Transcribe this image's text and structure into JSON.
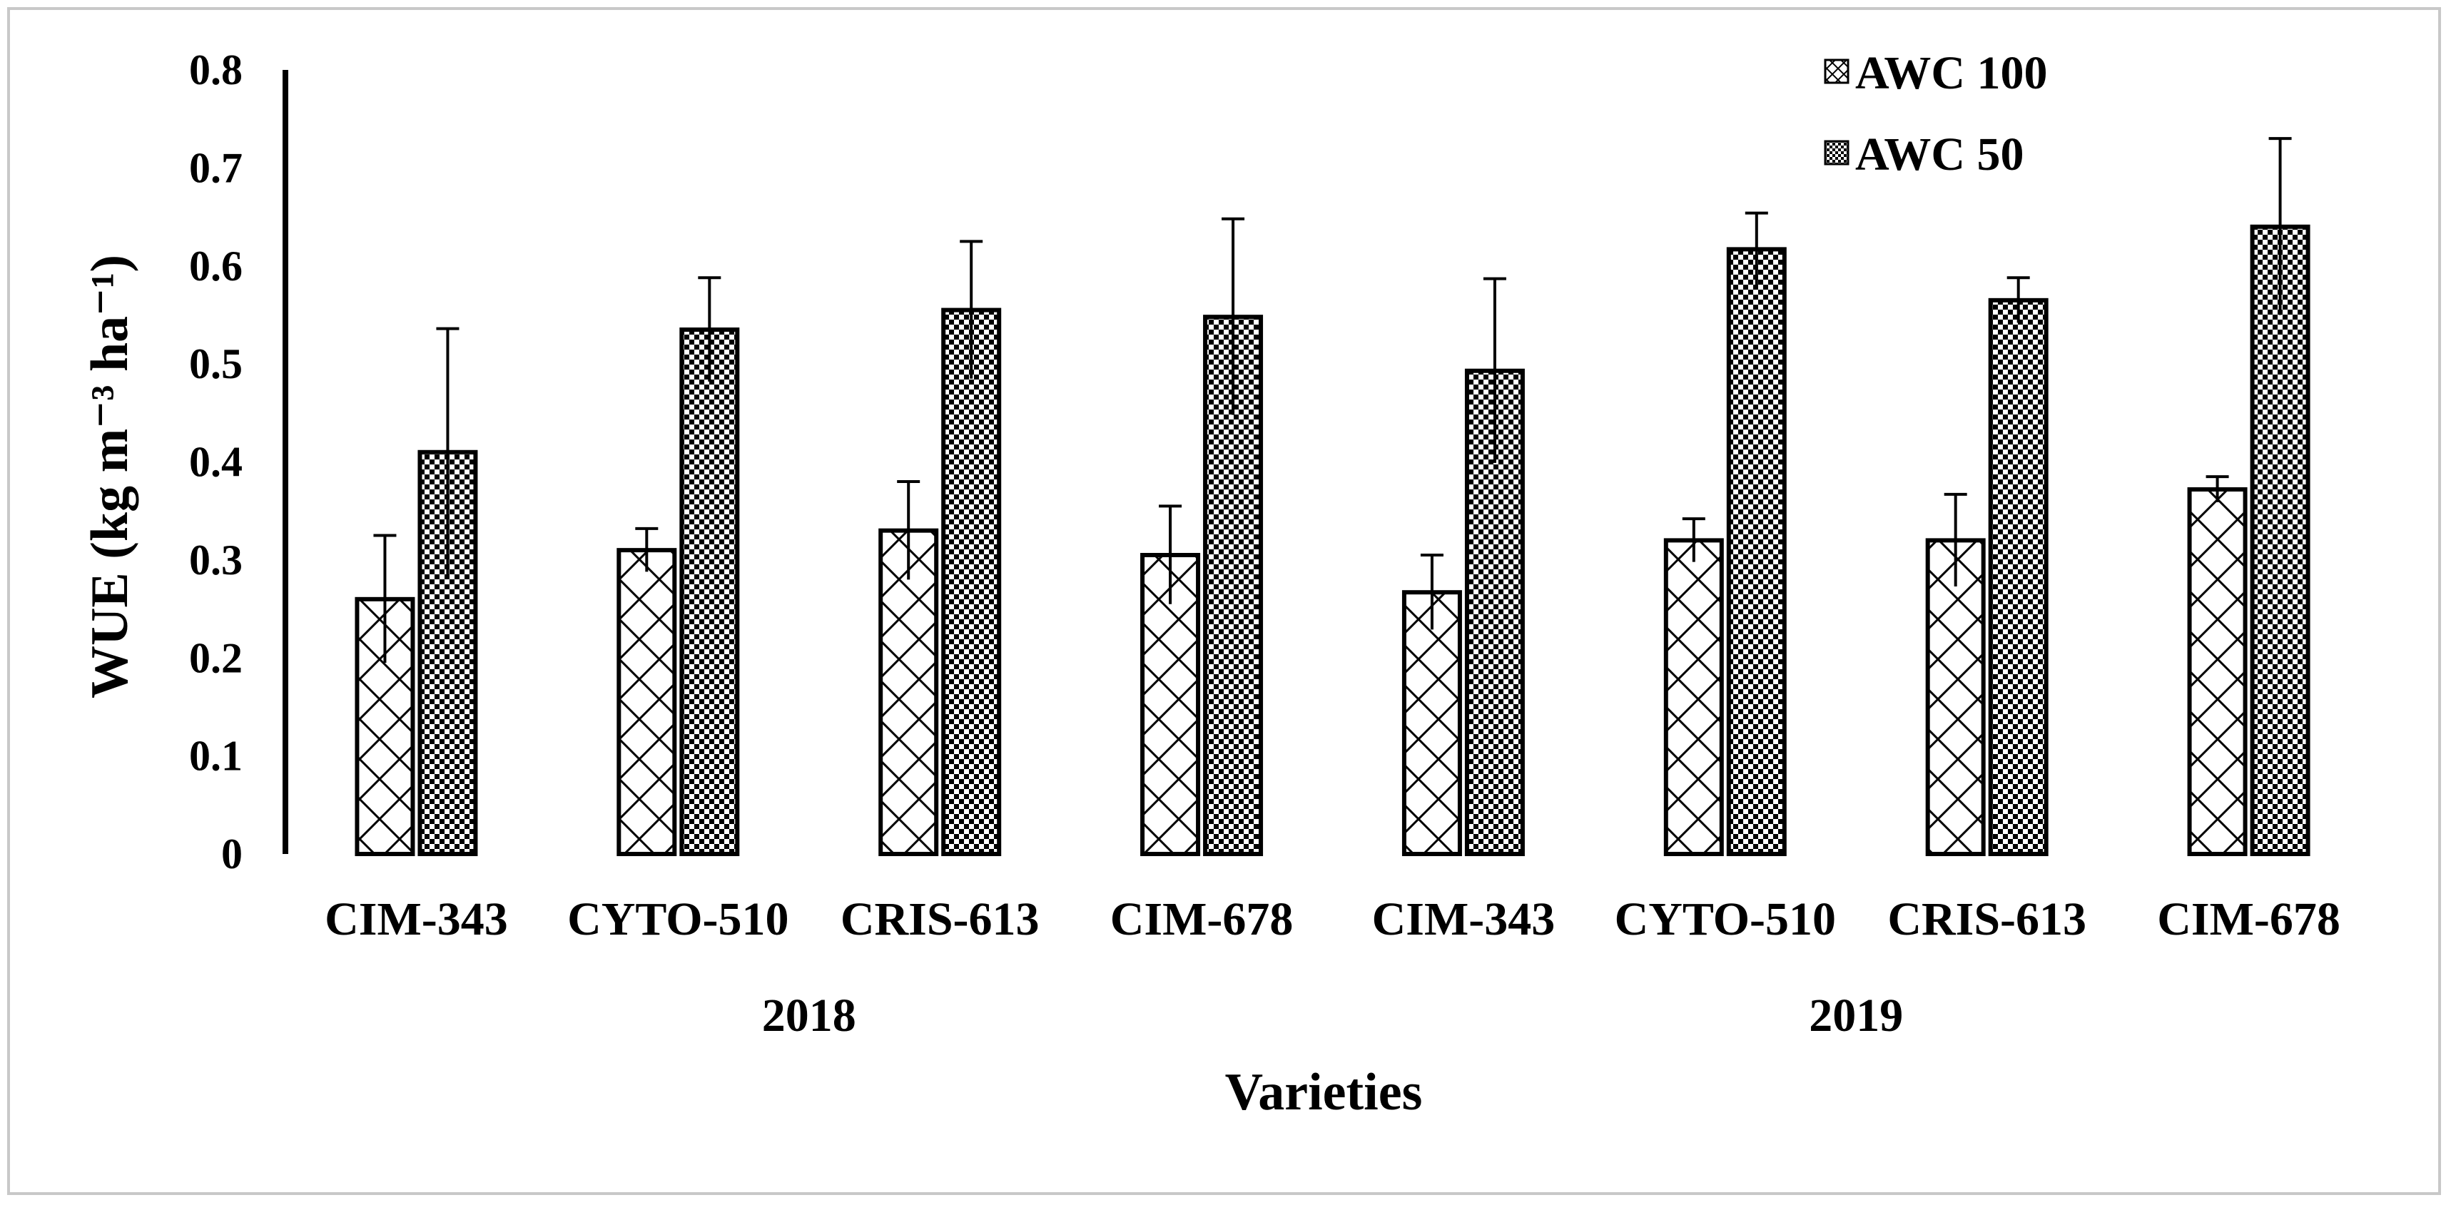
{
  "chart_data": {
    "type": "bar",
    "title": "",
    "xlabel": "Varieties",
    "ylabel": "WUE (kg m⁻³ ha⁻¹)",
    "ylim": [
      0,
      0.8
    ],
    "yticks": [
      "0",
      "0.1",
      "0.2",
      "0.3",
      "0.4",
      "0.5",
      "0.6",
      "0.7",
      "0.8"
    ],
    "grid": false,
    "legend_position": "top-right",
    "categories": [
      "CIM-343",
      "CYTO-510",
      "CRIS-613",
      "CIM-678",
      "CIM-343",
      "CYTO-510",
      "CRIS-613",
      "CIM-678"
    ],
    "groups": [
      {
        "label": "2018",
        "span": [
          0,
          3
        ]
      },
      {
        "label": "2019",
        "span": [
          4,
          7
        ]
      }
    ],
    "series": [
      {
        "name": "AWC 100",
        "pattern": "crosshatch-light",
        "values": [
          0.26,
          0.31,
          0.33,
          0.305,
          0.267,
          0.32,
          0.32,
          0.372
        ],
        "errors": [
          0.065,
          0.022,
          0.05,
          0.05,
          0.038,
          0.022,
          0.047,
          0.013
        ]
      },
      {
        "name": "AWC 50",
        "pattern": "checker-dense",
        "values": [
          0.41,
          0.535,
          0.555,
          0.548,
          0.493,
          0.617,
          0.565,
          0.64
        ],
        "errors": [
          0.126,
          0.053,
          0.07,
          0.1,
          0.094,
          0.037,
          0.023,
          0.09
        ]
      }
    ],
    "colors": {
      "bar_fill": "#ffffff",
      "bar_stroke": "#000000",
      "pattern_ink": "#000000"
    }
  }
}
